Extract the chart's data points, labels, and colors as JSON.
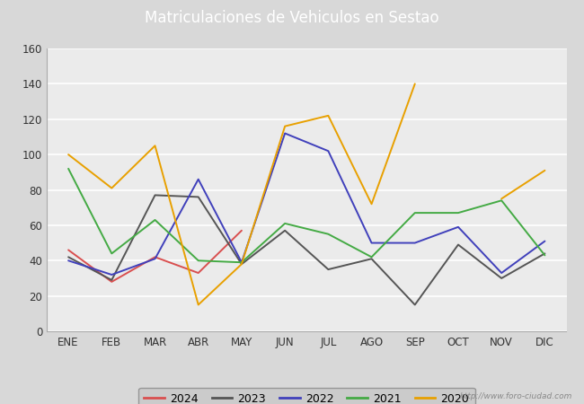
{
  "title": "Matriculaciones de Vehiculos en Sestao",
  "title_bg_color": "#4f86c6",
  "title_text_color": "#ffffff",
  "months": [
    "ENE",
    "FEB",
    "MAR",
    "ABR",
    "MAY",
    "JUN",
    "JUL",
    "AGO",
    "SEP",
    "OCT",
    "NOV",
    "DIC"
  ],
  "series": {
    "2024": {
      "color": "#d94f4f",
      "data": [
        46,
        28,
        42,
        33,
        57,
        null,
        null,
        null,
        null,
        null,
        null,
        null
      ]
    },
    "2023": {
      "color": "#555555",
      "data": [
        42,
        29,
        77,
        76,
        38,
        57,
        35,
        41,
        15,
        49,
        30,
        44
      ]
    },
    "2022": {
      "color": "#4040bb",
      "data": [
        40,
        32,
        41,
        86,
        39,
        112,
        102,
        50,
        50,
        59,
        33,
        51
      ]
    },
    "2021": {
      "color": "#44aa44",
      "data": [
        92,
        44,
        63,
        40,
        39,
        61,
        55,
        42,
        67,
        67,
        74,
        43
      ]
    },
    "2020": {
      "color": "#e8a000",
      "data": [
        100,
        81,
        105,
        15,
        38,
        116,
        122,
        72,
        140,
        null,
        75,
        91
      ]
    }
  },
  "ylim": [
    0,
    160
  ],
  "yticks": [
    0,
    20,
    40,
    60,
    80,
    100,
    120,
    140,
    160
  ],
  "plot_bg_color": "#ebebeb",
  "outer_bg_color": "#d8d8d8",
  "grid_color": "#ffffff",
  "watermark": "http://www.foro-ciudad.com",
  "legend_order": [
    "2024",
    "2023",
    "2022",
    "2021",
    "2020"
  ],
  "legend_bg_color": "#c8c8c8",
  "legend_edge_color": "#888888"
}
